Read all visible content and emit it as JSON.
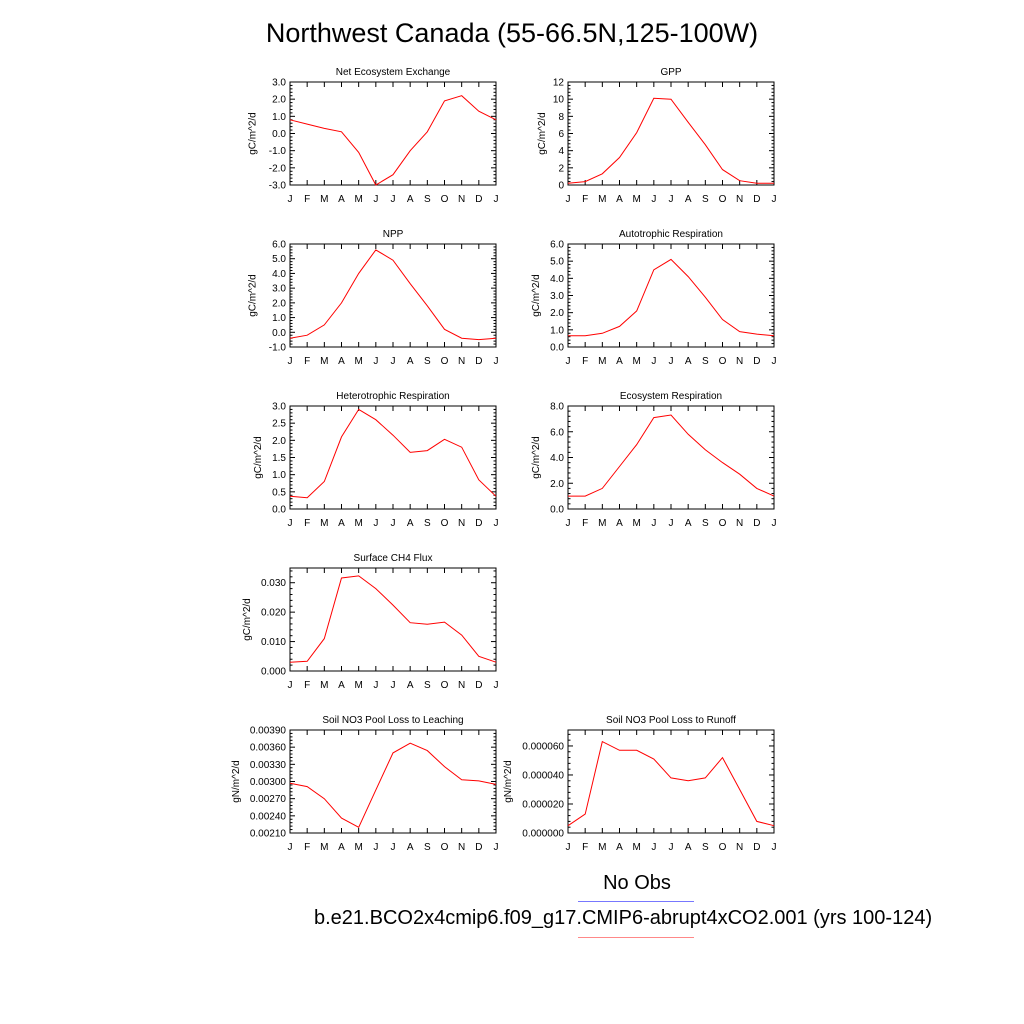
{
  "title": "Northwest Canada (55-66.5N,125-100W)",
  "colors": {
    "series": "#ff0000",
    "obs_line": "#7777ff",
    "case_line": "#ff8888",
    "axis": "#000000"
  },
  "legend": {
    "obs_label": "No Obs",
    "case_label": "b.e21.BCO2x4cmip6.f09_g17.CMIP6-abrupt4xCO2.001 (yrs 100-124)"
  },
  "chart_data": [
    {
      "type": "line",
      "title": "Net Ecosystem Exchange",
      "ylabel": "gC/m^2/d",
      "xlabel": "",
      "categories": [
        "J",
        "F",
        "M",
        "A",
        "M",
        "J",
        "J",
        "A",
        "S",
        "O",
        "N",
        "D",
        "J"
      ],
      "values": [
        0.8,
        0.55,
        0.3,
        0.1,
        -1.1,
        -3.0,
        -2.4,
        -1.0,
        0.1,
        1.9,
        2.2,
        1.3,
        0.8
      ],
      "ylim": [
        -3.0,
        3.0
      ],
      "yticks": [
        -3.0,
        -2.0,
        -1.0,
        0.0,
        1.0,
        2.0,
        3.0
      ],
      "yticklabels": [
        "-3.0",
        "-2.0",
        "-1.0",
        "0.0",
        "1.0",
        "2.0",
        "3.0"
      ]
    },
    {
      "type": "line",
      "title": "GPP",
      "ylabel": "gC/m^2/d",
      "xlabel": "",
      "categories": [
        "J",
        "F",
        "M",
        "A",
        "M",
        "J",
        "J",
        "A",
        "S",
        "O",
        "N",
        "D",
        "J"
      ],
      "values": [
        0.2,
        0.4,
        1.3,
        3.2,
        6.1,
        10.1,
        10.0,
        7.3,
        4.7,
        1.8,
        0.5,
        0.2,
        0.2
      ],
      "ylim": [
        0,
        12
      ],
      "yticks": [
        0,
        2,
        4,
        6,
        8,
        10,
        12
      ],
      "yticklabels": [
        "0",
        "2",
        "4",
        "6",
        "8",
        "10",
        "12"
      ]
    },
    {
      "type": "line",
      "title": "NPP",
      "ylabel": "gC/m^2/d",
      "xlabel": "",
      "categories": [
        "J",
        "F",
        "M",
        "A",
        "M",
        "J",
        "J",
        "A",
        "S",
        "O",
        "N",
        "D",
        "J"
      ],
      "values": [
        -0.4,
        -0.2,
        0.5,
        2.0,
        4.0,
        5.6,
        4.9,
        3.3,
        1.8,
        0.2,
        -0.4,
        -0.5,
        -0.4
      ],
      "ylim": [
        -1.0,
        6.0
      ],
      "yticks": [
        -1.0,
        0.0,
        1.0,
        2.0,
        3.0,
        4.0,
        5.0,
        6.0
      ],
      "yticklabels": [
        "-1.0",
        "0.0",
        "1.0",
        "2.0",
        "3.0",
        "4.0",
        "5.0",
        "6.0"
      ]
    },
    {
      "type": "line",
      "title": "Autotrophic Respiration",
      "ylabel": "gC/m^2/d",
      "xlabel": "",
      "categories": [
        "J",
        "F",
        "M",
        "A",
        "M",
        "J",
        "J",
        "A",
        "S",
        "O",
        "N",
        "D",
        "J"
      ],
      "values": [
        0.65,
        0.65,
        0.8,
        1.2,
        2.1,
        4.5,
        5.1,
        4.1,
        2.9,
        1.6,
        0.9,
        0.75,
        0.65
      ],
      "ylim": [
        0.0,
        6.0
      ],
      "yticks": [
        0.0,
        1.0,
        2.0,
        3.0,
        4.0,
        5.0,
        6.0
      ],
      "yticklabels": [
        "0.0",
        "1.0",
        "2.0",
        "3.0",
        "4.0",
        "5.0",
        "6.0"
      ]
    },
    {
      "type": "line",
      "title": "Heterotrophic Respiration",
      "ylabel": "gC/m^2/d",
      "xlabel": "",
      "categories": [
        "J",
        "F",
        "M",
        "A",
        "M",
        "J",
        "J",
        "A",
        "S",
        "O",
        "N",
        "D",
        "J"
      ],
      "values": [
        0.37,
        0.33,
        0.8,
        2.1,
        2.9,
        2.6,
        2.15,
        1.65,
        1.7,
        2.03,
        1.8,
        0.85,
        0.37
      ],
      "ylim": [
        0.0,
        3.0
      ],
      "yticks": [
        0.0,
        0.5,
        1.0,
        1.5,
        2.0,
        2.5,
        3.0
      ],
      "yticklabels": [
        "0.0",
        "0.5",
        "1.0",
        "1.5",
        "2.0",
        "2.5",
        "3.0"
      ]
    },
    {
      "type": "line",
      "title": "Ecosystem Respiration",
      "ylabel": "gC/m^2/d",
      "xlabel": "",
      "categories": [
        "J",
        "F",
        "M",
        "A",
        "M",
        "J",
        "J",
        "A",
        "S",
        "O",
        "N",
        "D",
        "J"
      ],
      "values": [
        1.0,
        1.0,
        1.6,
        3.3,
        5.0,
        7.1,
        7.3,
        5.8,
        4.6,
        3.6,
        2.7,
        1.6,
        1.0
      ],
      "ylim": [
        0.0,
        8.0
      ],
      "yticks": [
        0.0,
        2.0,
        4.0,
        6.0,
        8.0
      ],
      "yticklabels": [
        "0.0",
        "2.0",
        "4.0",
        "6.0",
        "8.0"
      ]
    },
    {
      "type": "line",
      "title": "Surface CH4 Flux",
      "ylabel": "gC/m^2/d",
      "xlabel": "",
      "categories": [
        "J",
        "F",
        "M",
        "A",
        "M",
        "J",
        "J",
        "A",
        "S",
        "O",
        "N",
        "D",
        "J"
      ],
      "values": [
        0.003,
        0.0033,
        0.011,
        0.0316,
        0.0323,
        0.028,
        0.0224,
        0.0164,
        0.0159,
        0.0166,
        0.0122,
        0.005,
        0.003
      ],
      "ylim": [
        0.0,
        0.035
      ],
      "yticks": [
        0.0,
        0.01,
        0.02,
        0.03
      ],
      "yticklabels": [
        "0.000",
        "0.010",
        "0.020",
        "0.030"
      ]
    },
    {
      "type": "line",
      "title": "Soil NO3 Pool Loss to Leaching",
      "ylabel": "gN/m^2/d",
      "xlabel": "",
      "categories": [
        "J",
        "F",
        "M",
        "A",
        "M",
        "J",
        "J",
        "A",
        "S",
        "O",
        "N",
        "D",
        "J"
      ],
      "values": [
        0.00297,
        0.00291,
        0.0027,
        0.00236,
        0.0022,
        0.00285,
        0.0035,
        0.00367,
        0.00354,
        0.00326,
        0.00303,
        0.00301,
        0.00295
      ],
      "ylim": [
        0.0021,
        0.0039
      ],
      "yticks": [
        0.0021,
        0.0024,
        0.0027,
        0.003,
        0.0033,
        0.0036,
        0.0039
      ],
      "yticklabels": [
        "0.00210",
        "0.00240",
        "0.00270",
        "0.00300",
        "0.00330",
        "0.00360",
        "0.00390"
      ]
    },
    {
      "type": "line",
      "title": "Soil NO3 Pool Loss to Runoff",
      "ylabel": "gN/m^2/d",
      "xlabel": "",
      "categories": [
        "J",
        "F",
        "M",
        "A",
        "M",
        "J",
        "J",
        "A",
        "S",
        "O",
        "N",
        "D",
        "J"
      ],
      "values": [
        5e-06,
        1.3e-05,
        6.3e-05,
        5.7e-05,
        5.7e-05,
        5.1e-05,
        3.8e-05,
        3.6e-05,
        3.8e-05,
        5.2e-05,
        3e-05,
        8e-06,
        5e-06
      ],
      "ylim": [
        0.0,
        7.1e-05
      ],
      "yticks": [
        0.0,
        2e-05,
        4e-05,
        6e-05
      ],
      "yticklabels": [
        "0.000000",
        "0.000020",
        "0.000040",
        "0.000060"
      ]
    }
  ]
}
